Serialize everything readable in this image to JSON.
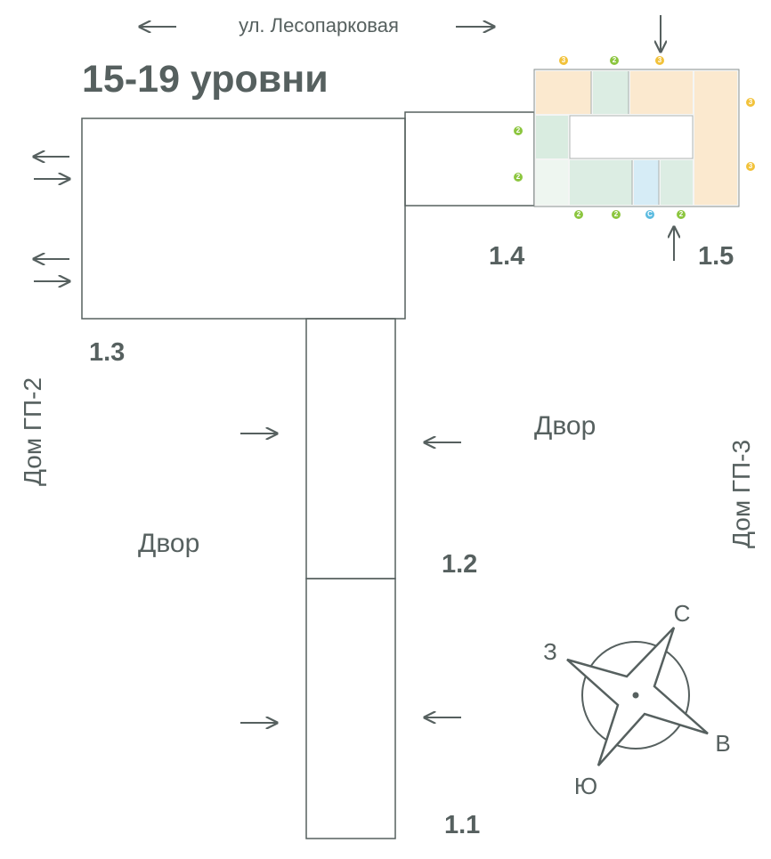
{
  "header": {
    "title": "15-19 уровни",
    "street": "ул. Лесопарковая"
  },
  "sections": [
    "1.1",
    "1.2",
    "1.3",
    "1.4",
    "1.5"
  ],
  "neighbors": [
    "Дом ГП-2",
    "Дом ГП-3"
  ],
  "yards": [
    "Двор",
    "Двор"
  ],
  "compass": {
    "north": "С",
    "west": "З",
    "east": "В",
    "south": "Ю"
  },
  "floor_plan": {
    "rooms_badges": [
      "3",
      "2",
      "3",
      "3",
      "3",
      "2",
      "2",
      "2",
      "2",
      "С",
      "2"
    ]
  }
}
